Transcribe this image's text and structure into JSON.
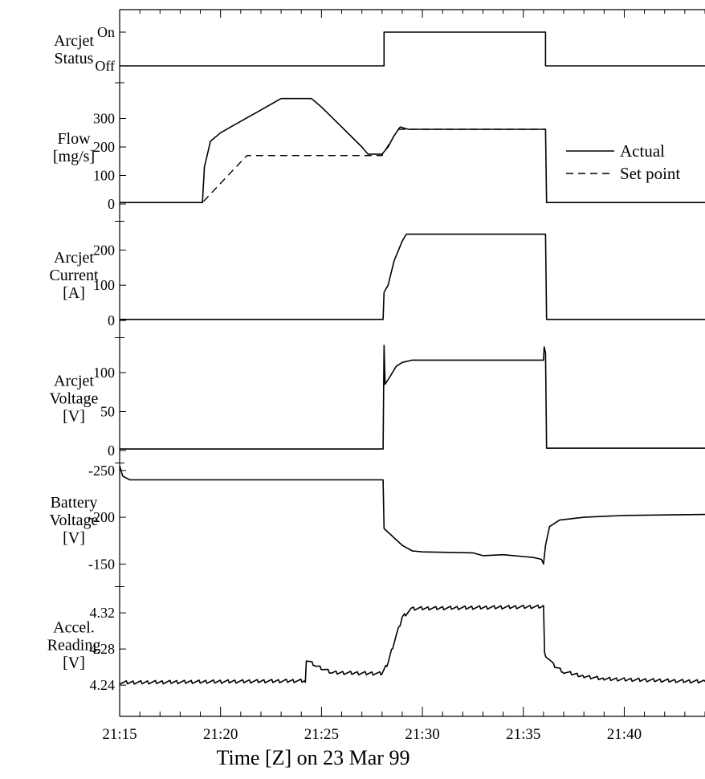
{
  "chart_data": {
    "type": "line",
    "xlabel": "Time [Z] on 23 Mar 99",
    "x_tick_labels": [
      "21:15",
      "21:20",
      "21:25",
      "21:30",
      "21:35",
      "21:40"
    ],
    "x_ticks": [
      15,
      20,
      25,
      30,
      35,
      40
    ],
    "xlim": [
      15,
      44
    ],
    "x_unit_note": "minutes after 21:00",
    "panels": [
      {
        "id": "status",
        "ylabel": [
          "Arcjet",
          "Status"
        ],
        "ylim": [
          0,
          1
        ],
        "y_tick_labels": [
          {
            "v": 0,
            "label": "Off"
          },
          {
            "v": 1,
            "label": "On"
          }
        ],
        "series": [
          {
            "dash": false,
            "points": [
              [
                15,
                0
              ],
              [
                28.1,
                0
              ],
              [
                28.1,
                1
              ],
              [
                36.1,
                1
              ],
              [
                36.1,
                0
              ],
              [
                44,
                0
              ]
            ]
          }
        ]
      },
      {
        "id": "flow",
        "ylabel": [
          "Flow",
          "[mg/s]"
        ],
        "ylim": [
          0,
          400
        ],
        "y_tick_labels": [
          {
            "v": 0,
            "label": "0"
          },
          {
            "v": 100,
            "label": "100"
          },
          {
            "v": 200,
            "label": "200"
          },
          {
            "v": 300,
            "label": "300"
          }
        ],
        "legend": [
          {
            "name": "Actual",
            "dash": false
          },
          {
            "name": "Set point",
            "dash": true
          }
        ],
        "series": [
          {
            "name": "Actual",
            "dash": false,
            "points": [
              [
                15,
                5
              ],
              [
                19.1,
                5
              ],
              [
                19.2,
                130
              ],
              [
                19.5,
                220
              ],
              [
                20,
                250
              ],
              [
                21,
                290
              ],
              [
                22,
                330
              ],
              [
                23,
                370
              ],
              [
                24.5,
                370
              ],
              [
                25,
                340
              ],
              [
                26,
                270
              ],
              [
                27,
                200
              ],
              [
                27.3,
                175
              ],
              [
                28,
                175
              ],
              [
                28.3,
                200
              ],
              [
                28.6,
                240
              ],
              [
                28.9,
                270
              ],
              [
                29.3,
                262
              ],
              [
                36.1,
                262
              ],
              [
                36.15,
                5
              ],
              [
                44,
                5
              ]
            ]
          },
          {
            "name": "Set point",
            "dash": true,
            "points": [
              [
                15,
                5
              ],
              [
                19.1,
                5
              ],
              [
                21.3,
                170
              ],
              [
                28,
                170
              ],
              [
                28.8,
                262
              ],
              [
                36.1,
                262
              ]
            ]
          }
        ]
      },
      {
        "id": "current",
        "ylabel": [
          "Arcjet",
          "Current",
          "[A]"
        ],
        "ylim": [
          0,
          260
        ],
        "y_tick_labels": [
          {
            "v": 0,
            "label": "0"
          },
          {
            "v": 100,
            "label": "100"
          },
          {
            "v": 200,
            "label": "200"
          }
        ],
        "series": [
          {
            "dash": false,
            "points": [
              [
                15,
                3
              ],
              [
                28.05,
                3
              ],
              [
                28.1,
                80
              ],
              [
                28.3,
                100
              ],
              [
                28.6,
                170
              ],
              [
                29,
                225
              ],
              [
                29.2,
                245
              ],
              [
                36.1,
                245
              ],
              [
                36.15,
                3
              ],
              [
                44,
                3
              ]
            ]
          }
        ]
      },
      {
        "id": "voltage",
        "ylabel": [
          "Arcjet",
          "Voltage",
          "[V]"
        ],
        "ylim": [
          0,
          135
        ],
        "y_tick_labels": [
          {
            "v": 0,
            "label": "0"
          },
          {
            "v": 50,
            "label": "50"
          },
          {
            "v": 100,
            "label": "100"
          }
        ],
        "series": [
          {
            "dash": false,
            "points": [
              [
                15,
                2
              ],
              [
                28.05,
                2
              ],
              [
                28.1,
                135
              ],
              [
                28.15,
                85
              ],
              [
                28.4,
                95
              ],
              [
                28.7,
                108
              ],
              [
                29,
                113
              ],
              [
                29.5,
                116
              ],
              [
                36,
                116
              ],
              [
                36.03,
                133
              ],
              [
                36.1,
                125
              ],
              [
                36.15,
                3
              ],
              [
                44,
                3
              ]
            ]
          }
        ]
      },
      {
        "id": "battery",
        "ylabel": [
          "Battery",
          "Voltage",
          "[V]"
        ],
        "ylim": [
          -140,
          -255
        ],
        "y_tick_labels": [
          {
            "v": -150,
            "label": "-150"
          },
          {
            "v": -200,
            "label": "-200"
          },
          {
            "v": -250,
            "label": "-250"
          }
        ],
        "series": [
          {
            "dash": false,
            "points": [
              [
                15,
                -255
              ],
              [
                15.15,
                -244
              ],
              [
                15.5,
                -240
              ],
              [
                28.05,
                -240
              ],
              [
                28.1,
                -188
              ],
              [
                28.5,
                -180
              ],
              [
                29,
                -170
              ],
              [
                29.5,
                -164
              ],
              [
                30,
                -163
              ],
              [
                32.5,
                -162
              ],
              [
                33,
                -159
              ],
              [
                34,
                -160
              ],
              [
                35,
                -158
              ],
              [
                35.5,
                -157
              ],
              [
                35.9,
                -155
              ],
              [
                36,
                -150
              ],
              [
                36.1,
                -170
              ],
              [
                36.3,
                -190
              ],
              [
                36.8,
                -197
              ],
              [
                38,
                -200
              ],
              [
                40,
                -202
              ],
              [
                44,
                -203
              ]
            ]
          }
        ]
      },
      {
        "id": "accel",
        "ylabel": [
          "Accel.",
          "Reading",
          "[V]"
        ],
        "ylim": [
          4.225,
          4.345
        ],
        "y_tick_labels": [
          {
            "v": 4.24,
            "label": "4.24"
          },
          {
            "v": 4.28,
            "label": "4.28"
          },
          {
            "v": 4.32,
            "label": "4.32"
          }
        ],
        "series": [
          {
            "dash": false,
            "points": [
              [
                15,
                4.243
              ],
              [
                24.2,
                4.245
              ],
              [
                24.25,
                4.268
              ],
              [
                24.7,
                4.262
              ],
              [
                25.5,
                4.254
              ],
              [
                28,
                4.253
              ],
              [
                28.3,
                4.265
              ],
              [
                28.7,
                4.295
              ],
              [
                29,
                4.315
              ],
              [
                29.5,
                4.325
              ],
              [
                36,
                4.327
              ],
              [
                36.05,
                4.275
              ],
              [
                36.5,
                4.262
              ],
              [
                37,
                4.255
              ],
              [
                38,
                4.25
              ],
              [
                39,
                4.247
              ],
              [
                44,
                4.244
              ]
            ]
          }
        ],
        "noisy": true
      }
    ]
  }
}
